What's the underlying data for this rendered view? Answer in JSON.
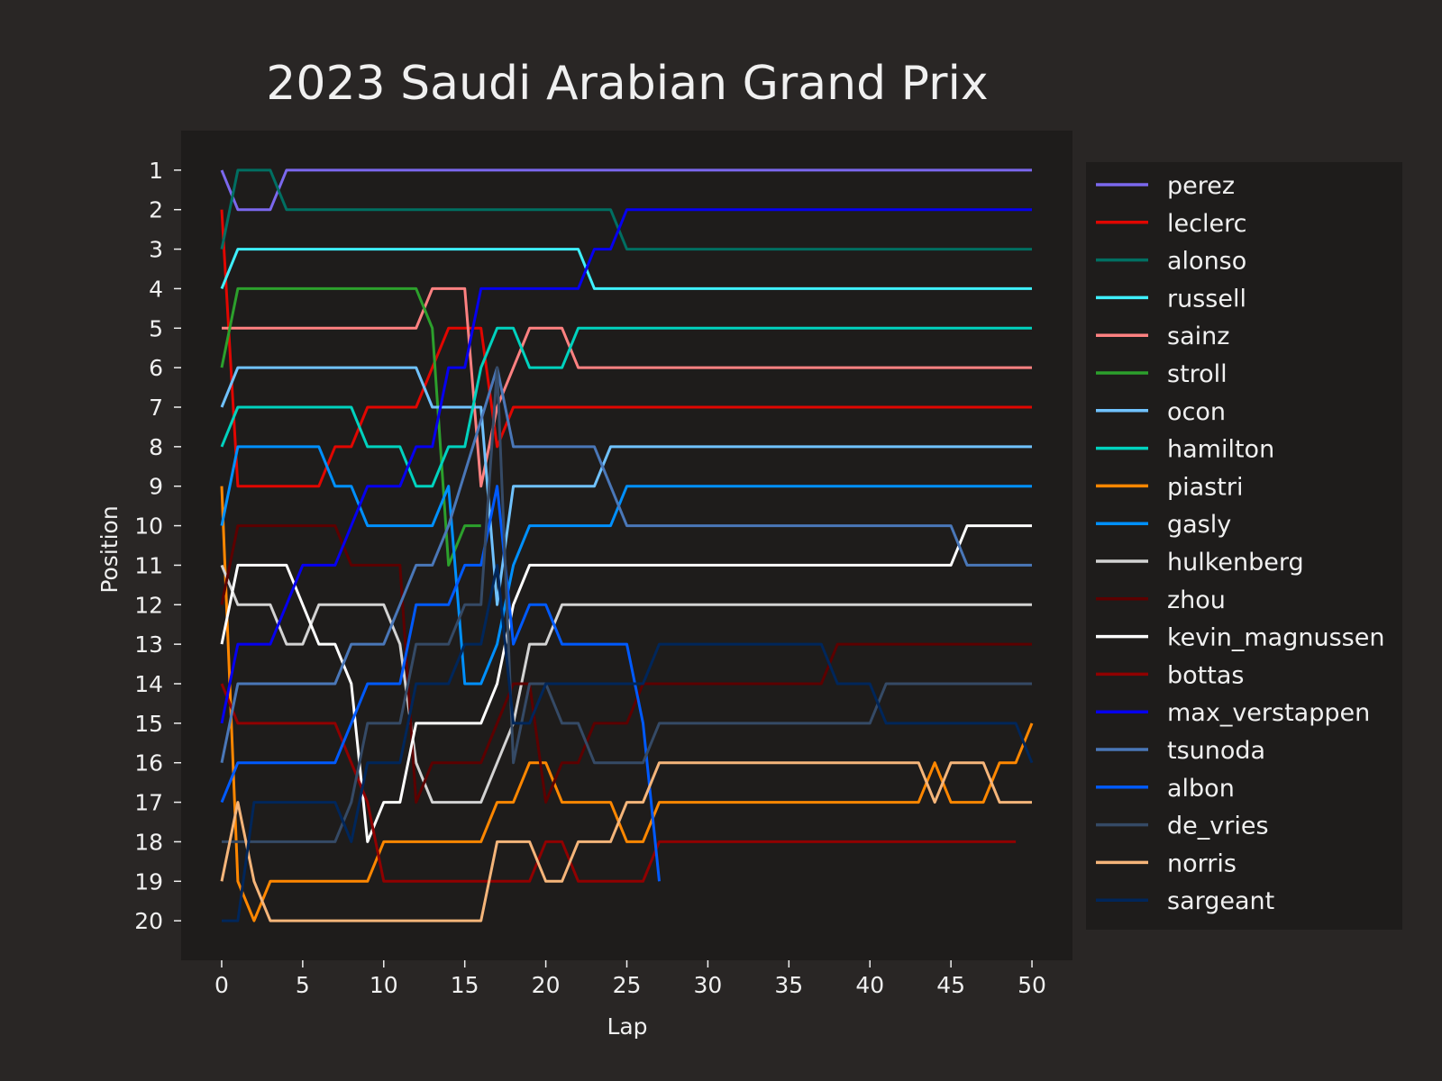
{
  "chart_data": {
    "type": "line",
    "title": "2023 Saudi Arabian Grand Prix",
    "xlabel": "Lap",
    "ylabel": "Position",
    "xlim": [
      -2.5,
      52.5
    ],
    "ylim": [
      21,
      0
    ],
    "x_ticks": [
      0,
      5,
      10,
      15,
      20,
      25,
      30,
      35,
      40,
      45,
      50
    ],
    "y_ticks": [
      1,
      2,
      3,
      4,
      5,
      6,
      7,
      8,
      9,
      10,
      11,
      12,
      13,
      14,
      15,
      16,
      17,
      18,
      19,
      20
    ],
    "legend_position": "outside-right",
    "grid": false,
    "series": [
      {
        "name": "perez",
        "color": "#7b68ee",
        "points": [
          [
            0,
            1
          ],
          [
            1,
            2
          ],
          [
            3,
            2
          ],
          [
            4,
            1
          ],
          [
            50,
            1
          ]
        ]
      },
      {
        "name": "leclerc",
        "color": "#e10600",
        "points": [
          [
            0,
            2
          ],
          [
            1,
            9
          ],
          [
            6,
            9
          ],
          [
            7,
            8
          ],
          [
            8,
            8
          ],
          [
            9,
            7
          ],
          [
            12,
            7
          ],
          [
            13,
            6
          ],
          [
            14,
            5
          ],
          [
            16,
            5
          ],
          [
            17,
            8
          ],
          [
            18,
            7
          ],
          [
            50,
            7
          ]
        ]
      },
      {
        "name": "alonso",
        "color": "#006f62",
        "points": [
          [
            0,
            3
          ],
          [
            1,
            1
          ],
          [
            3,
            1
          ],
          [
            4,
            2
          ],
          [
            24,
            2
          ],
          [
            25,
            3
          ],
          [
            50,
            3
          ]
        ]
      },
      {
        "name": "russell",
        "color": "#3ff0ff",
        "points": [
          [
            0,
            4
          ],
          [
            1,
            3
          ],
          [
            22,
            3
          ],
          [
            23,
            4
          ],
          [
            50,
            4
          ]
        ]
      },
      {
        "name": "sainz",
        "color": "#ff8181",
        "points": [
          [
            0,
            5
          ],
          [
            12,
            5
          ],
          [
            13,
            4
          ],
          [
            15,
            4
          ],
          [
            16,
            9
          ],
          [
            17,
            7
          ],
          [
            19,
            5
          ],
          [
            21,
            5
          ],
          [
            22,
            6
          ],
          [
            50,
            6
          ]
        ]
      },
      {
        "name": "stroll",
        "color": "#2ca02c",
        "points": [
          [
            0,
            6
          ],
          [
            1,
            4
          ],
          [
            12,
            4
          ],
          [
            13,
            5
          ],
          [
            14,
            11
          ],
          [
            15,
            10
          ],
          [
            16,
            10
          ]
        ]
      },
      {
        "name": "ocon",
        "color": "#70c2ff",
        "points": [
          [
            0,
            7
          ],
          [
            1,
            6
          ],
          [
            12,
            6
          ],
          [
            13,
            7
          ],
          [
            16,
            7
          ],
          [
            17,
            12
          ],
          [
            18,
            9
          ],
          [
            23,
            9
          ],
          [
            24,
            8
          ],
          [
            50,
            8
          ]
        ]
      },
      {
        "name": "hamilton",
        "color": "#00d2be",
        "points": [
          [
            0,
            8
          ],
          [
            1,
            7
          ],
          [
            8,
            7
          ],
          [
            9,
            8
          ],
          [
            11,
            8
          ],
          [
            12,
            9
          ],
          [
            13,
            9
          ],
          [
            14,
            8
          ],
          [
            15,
            8
          ],
          [
            16,
            6
          ],
          [
            17,
            5
          ],
          [
            18,
            5
          ],
          [
            19,
            6
          ],
          [
            21,
            6
          ],
          [
            22,
            5
          ],
          [
            50,
            5
          ]
        ]
      },
      {
        "name": "piastri",
        "color": "#ff8700",
        "points": [
          [
            0,
            9
          ],
          [
            1,
            19
          ],
          [
            2,
            20
          ],
          [
            3,
            19
          ],
          [
            9,
            19
          ],
          [
            10,
            18
          ],
          [
            16,
            18
          ],
          [
            17,
            17
          ],
          [
            18,
            17
          ],
          [
            19,
            16
          ],
          [
            20,
            16
          ],
          [
            21,
            17
          ],
          [
            24,
            17
          ],
          [
            25,
            18
          ],
          [
            26,
            18
          ],
          [
            27,
            17
          ],
          [
            43,
            17
          ],
          [
            44,
            16
          ],
          [
            45,
            17
          ],
          [
            47,
            17
          ],
          [
            48,
            16
          ],
          [
            49,
            16
          ],
          [
            50,
            15
          ]
        ]
      },
      {
        "name": "gasly",
        "color": "#0090ff",
        "points": [
          [
            0,
            10
          ],
          [
            1,
            8
          ],
          [
            6,
            8
          ],
          [
            7,
            9
          ],
          [
            8,
            9
          ],
          [
            9,
            10
          ],
          [
            13,
            10
          ],
          [
            14,
            9
          ],
          [
            15,
            14
          ],
          [
            16,
            14
          ],
          [
            17,
            13
          ],
          [
            18,
            11
          ],
          [
            19,
            10
          ],
          [
            24,
            10
          ],
          [
            25,
            9
          ],
          [
            50,
            9
          ]
        ]
      },
      {
        "name": "hulkenberg",
        "color": "#d3d3d3",
        "points": [
          [
            0,
            11
          ],
          [
            1,
            12
          ],
          [
            3,
            12
          ],
          [
            4,
            13
          ],
          [
            5,
            13
          ],
          [
            6,
            12
          ],
          [
            10,
            12
          ],
          [
            11,
            13
          ],
          [
            12,
            16
          ],
          [
            13,
            17
          ],
          [
            16,
            17
          ],
          [
            18,
            15
          ],
          [
            19,
            13
          ],
          [
            20,
            13
          ],
          [
            21,
            12
          ],
          [
            50,
            12
          ]
        ]
      },
      {
        "name": "zhou",
        "color": "#5c0000",
        "points": [
          [
            0,
            12
          ],
          [
            1,
            10
          ],
          [
            7,
            10
          ],
          [
            8,
            11
          ],
          [
            11,
            11
          ],
          [
            12,
            17
          ],
          [
            13,
            16
          ],
          [
            14,
            16
          ],
          [
            16,
            16
          ],
          [
            18,
            14
          ],
          [
            19,
            14
          ],
          [
            20,
            17
          ],
          [
            21,
            16
          ],
          [
            22,
            16
          ],
          [
            23,
            15
          ],
          [
            25,
            15
          ],
          [
            26,
            14
          ],
          [
            37,
            14
          ],
          [
            38,
            13
          ],
          [
            50,
            13
          ]
        ]
      },
      {
        "name": "kevin_magnussen",
        "color": "#ffffff",
        "points": [
          [
            0,
            13
          ],
          [
            1,
            11
          ],
          [
            4,
            11
          ],
          [
            5,
            12
          ],
          [
            6,
            13
          ],
          [
            7,
            13
          ],
          [
            8,
            14
          ],
          [
            9,
            18
          ],
          [
            10,
            17
          ],
          [
            11,
            17
          ],
          [
            12,
            15
          ],
          [
            16,
            15
          ],
          [
            17,
            14
          ],
          [
            18,
            12
          ],
          [
            19,
            11
          ],
          [
            45,
            11
          ],
          [
            46,
            10
          ],
          [
            50,
            10
          ]
        ]
      },
      {
        "name": "bottas",
        "color": "#900000",
        "points": [
          [
            0,
            14
          ],
          [
            1,
            15
          ],
          [
            7,
            15
          ],
          [
            8,
            16
          ],
          [
            9,
            17
          ],
          [
            10,
            19
          ],
          [
            17,
            19
          ],
          [
            19,
            19
          ],
          [
            20,
            18
          ],
          [
            21,
            18
          ],
          [
            22,
            19
          ],
          [
            26,
            19
          ],
          [
            27,
            18
          ],
          [
            49,
            18
          ]
        ]
      },
      {
        "name": "max_verstappen",
        "color": "#0600ef",
        "points": [
          [
            0,
            15
          ],
          [
            1,
            13
          ],
          [
            3,
            13
          ],
          [
            4,
            12
          ],
          [
            5,
            11
          ],
          [
            7,
            11
          ],
          [
            8,
            10
          ],
          [
            9,
            9
          ],
          [
            11,
            9
          ],
          [
            12,
            8
          ],
          [
            13,
            8
          ],
          [
            14,
            6
          ],
          [
            15,
            6
          ],
          [
            16,
            4
          ],
          [
            22,
            4
          ],
          [
            23,
            3
          ],
          [
            24,
            3
          ],
          [
            25,
            2
          ],
          [
            50,
            2
          ]
        ]
      },
      {
        "name": "tsunoda",
        "color": "#4a77b8",
        "points": [
          [
            0,
            16
          ],
          [
            1,
            14
          ],
          [
            7,
            14
          ],
          [
            8,
            13
          ],
          [
            10,
            13
          ],
          [
            11,
            12
          ],
          [
            12,
            11
          ],
          [
            13,
            11
          ],
          [
            14,
            10
          ],
          [
            17,
            6
          ],
          [
            18,
            8
          ],
          [
            23,
            8
          ],
          [
            24,
            9
          ],
          [
            25,
            10
          ],
          [
            45,
            10
          ],
          [
            46,
            11
          ],
          [
            50,
            11
          ]
        ]
      },
      {
        "name": "albon",
        "color": "#005aff",
        "points": [
          [
            0,
            17
          ],
          [
            1,
            16
          ],
          [
            7,
            16
          ],
          [
            8,
            15
          ],
          [
            9,
            14
          ],
          [
            11,
            14
          ],
          [
            12,
            12
          ],
          [
            14,
            12
          ],
          [
            15,
            11
          ],
          [
            16,
            11
          ],
          [
            17,
            9
          ],
          [
            18,
            13
          ],
          [
            19,
            12
          ],
          [
            20,
            12
          ],
          [
            21,
            13
          ],
          [
            25,
            13
          ],
          [
            26,
            15
          ],
          [
            27,
            19
          ]
        ]
      },
      {
        "name": "de_vries",
        "color": "#354a66",
        "points": [
          [
            0,
            18
          ],
          [
            7,
            18
          ],
          [
            8,
            17
          ],
          [
            9,
            15
          ],
          [
            11,
            15
          ],
          [
            12,
            13
          ],
          [
            14,
            13
          ],
          [
            15,
            12
          ],
          [
            16,
            12
          ],
          [
            17,
            6
          ],
          [
            18,
            16
          ],
          [
            19,
            14
          ],
          [
            20,
            14
          ],
          [
            21,
            15
          ],
          [
            22,
            15
          ],
          [
            23,
            16
          ],
          [
            26,
            16
          ],
          [
            27,
            15
          ],
          [
            40,
            15
          ],
          [
            41,
            14
          ],
          [
            50,
            14
          ]
        ]
      },
      {
        "name": "norris",
        "color": "#f5b57a",
        "points": [
          [
            0,
            19
          ],
          [
            1,
            17
          ],
          [
            2,
            19
          ],
          [
            3,
            20
          ],
          [
            16,
            20
          ],
          [
            17,
            18
          ],
          [
            19,
            18
          ],
          [
            20,
            19
          ],
          [
            21,
            19
          ],
          [
            22,
            18
          ],
          [
            24,
            18
          ],
          [
            25,
            17
          ],
          [
            26,
            17
          ],
          [
            27,
            16
          ],
          [
            43,
            16
          ],
          [
            44,
            17
          ],
          [
            45,
            16
          ],
          [
            47,
            16
          ],
          [
            48,
            17
          ],
          [
            50,
            17
          ]
        ]
      },
      {
        "name": "sargeant",
        "color": "#00265a",
        "points": [
          [
            0,
            20
          ],
          [
            1,
            20
          ],
          [
            2,
            17
          ],
          [
            7,
            17
          ],
          [
            8,
            18
          ],
          [
            9,
            16
          ],
          [
            11,
            16
          ],
          [
            12,
            14
          ],
          [
            14,
            14
          ],
          [
            15,
            13
          ],
          [
            16,
            13
          ],
          [
            17,
            11
          ],
          [
            18,
            15
          ],
          [
            19,
            15
          ],
          [
            20,
            14
          ],
          [
            26,
            14
          ],
          [
            27,
            13
          ],
          [
            37,
            13
          ],
          [
            38,
            14
          ],
          [
            40,
            14
          ],
          [
            41,
            15
          ],
          [
            49,
            15
          ],
          [
            50,
            16
          ]
        ]
      }
    ]
  }
}
